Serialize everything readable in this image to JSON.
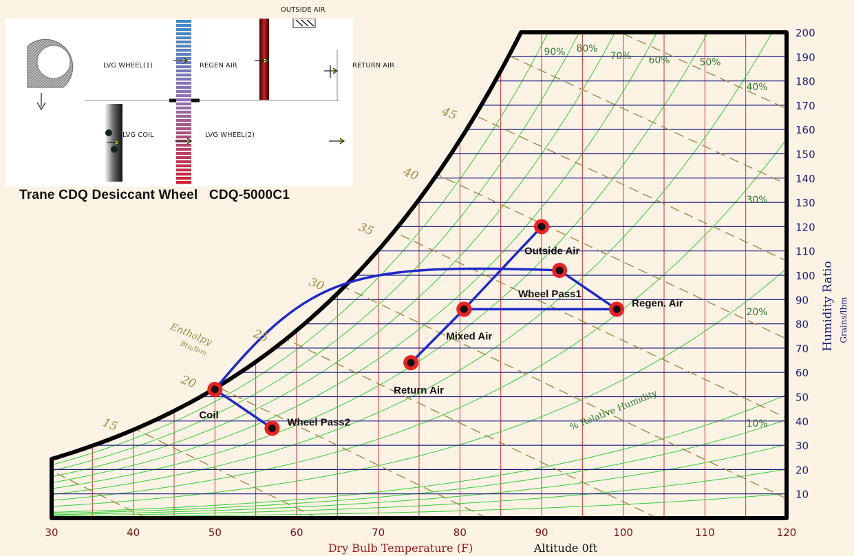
{
  "title": "Trane CDQ Desiccant Wheel   CDQ-5000C1",
  "schematic": {
    "outside_air": "OUTSIDE AIR",
    "lvg_wheel1": "LVG WHEEL(1)",
    "regen_air": "REGEN AIR",
    "return_air": "RETURN AIR",
    "lvg_coil": "LVG COIL",
    "lvg_wheel2": "LVG WHEEL(2)"
  },
  "chart_data": {
    "type": "psychrometric",
    "xlabel": "Dry Bulb Temperature  (F)",
    "xlim": [
      30,
      120
    ],
    "x_ticks": [
      "30",
      "40",
      "50",
      "60",
      "70",
      "80",
      "90",
      "100",
      "110",
      "120"
    ],
    "ylabel": "Humidity Ratio",
    "ylabel_unit": "Grains/lbm",
    "ylim": [
      0,
      200
    ],
    "y_ticks": [
      "10",
      "20",
      "30",
      "40",
      "50",
      "60",
      "70",
      "80",
      "90",
      "100",
      "110",
      "120",
      "130",
      "140",
      "150",
      "160",
      "170",
      "180",
      "190",
      "200"
    ],
    "altitude_label": "Altitude 0ft",
    "enthalpy_label": "Enthalpy",
    "enthalpy_unit": "Btu/lbm",
    "enthalpy_values": [
      "15",
      "20",
      "25",
      "30",
      "35",
      "40",
      "45"
    ],
    "rh_axis_label": "% Relative Humidity",
    "rh_labels": [
      "90%",
      "80%",
      "70%",
      "60%",
      "50%",
      "40%",
      "30%",
      "20%",
      "10%"
    ],
    "points": [
      {
        "name": "Outside Air",
        "t": 90,
        "w": 120
      },
      {
        "name": "Wheel Pass1",
        "t": 92.2,
        "w": 102
      },
      {
        "name": "Regen. Air",
        "t": 99.2,
        "w": 86
      },
      {
        "name": "Mixed Air",
        "t": 80.5,
        "w": 86
      },
      {
        "name": "Return Air",
        "t": 74,
        "w": 64
      },
      {
        "name": "Coil",
        "t": 50,
        "w": 53
      },
      {
        "name": "Wheel Pass2",
        "t": 57,
        "w": 37
      }
    ],
    "colors": {
      "background": "#fcf3e5",
      "saturation": "#000000",
      "temp_grid": "#cc3333",
      "w_grid": "#1a1a80",
      "rh_curves": "#33cc33",
      "enthalpy": "#a08a40",
      "process": "#1e28cc",
      "marker_ring": "#ee2020"
    }
  }
}
